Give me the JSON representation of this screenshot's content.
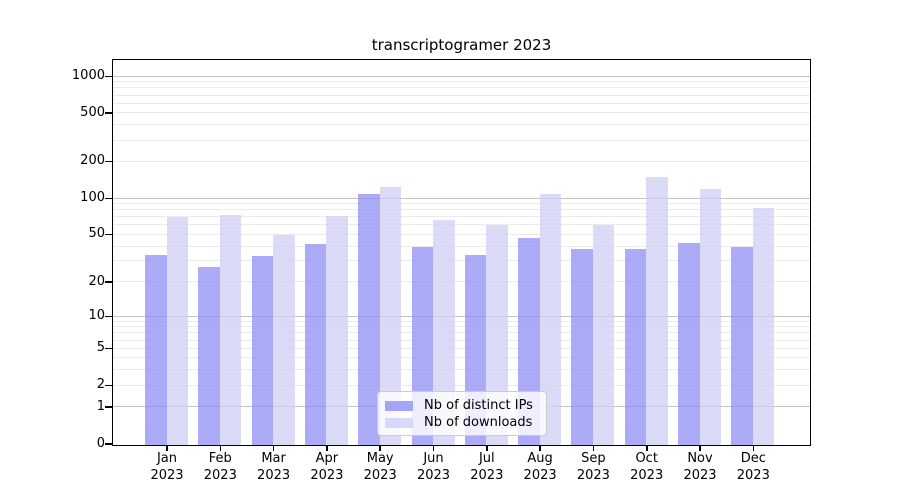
{
  "title": "transcriptogramer 2023",
  "chart_data": {
    "type": "bar",
    "title": "transcriptogramer 2023",
    "categories": [
      "Jan 2023",
      "Feb 2023",
      "Mar 2023",
      "Apr 2023",
      "May 2023",
      "Jun 2023",
      "Jul 2023",
      "Aug 2023",
      "Sep 2023",
      "Oct 2023",
      "Nov 2023",
      "Dec 2023"
    ],
    "series": [
      {
        "name": "Nb of distinct IPs",
        "color": "#8f8ff6",
        "values": [
          34,
          27,
          33,
          42,
          110,
          40,
          34,
          47,
          38,
          38,
          43,
          40
        ]
      },
      {
        "name": "Nb of downloads",
        "color": "#cfcff6",
        "values": [
          70,
          73,
          50,
          72,
          125,
          66,
          60,
          110,
          60,
          150,
          120,
          83
        ]
      }
    ],
    "xlabel": "",
    "ylabel": "",
    "yscale": "symlog (log1p)",
    "y_ticks": [
      0,
      1,
      2,
      5,
      10,
      20,
      50,
      100,
      200,
      500,
      1000
    ],
    "ylim": [
      0,
      1340
    ],
    "grid": true,
    "legend_position": "lower center"
  },
  "colors": {
    "bar_distinct_ips": "#8f8ff6",
    "bar_downloads": "#cfcff6",
    "grid_major": "#c3c3c3",
    "grid_minor": "#ebebeb",
    "axis": "#000000",
    "background": "#ffffff"
  }
}
